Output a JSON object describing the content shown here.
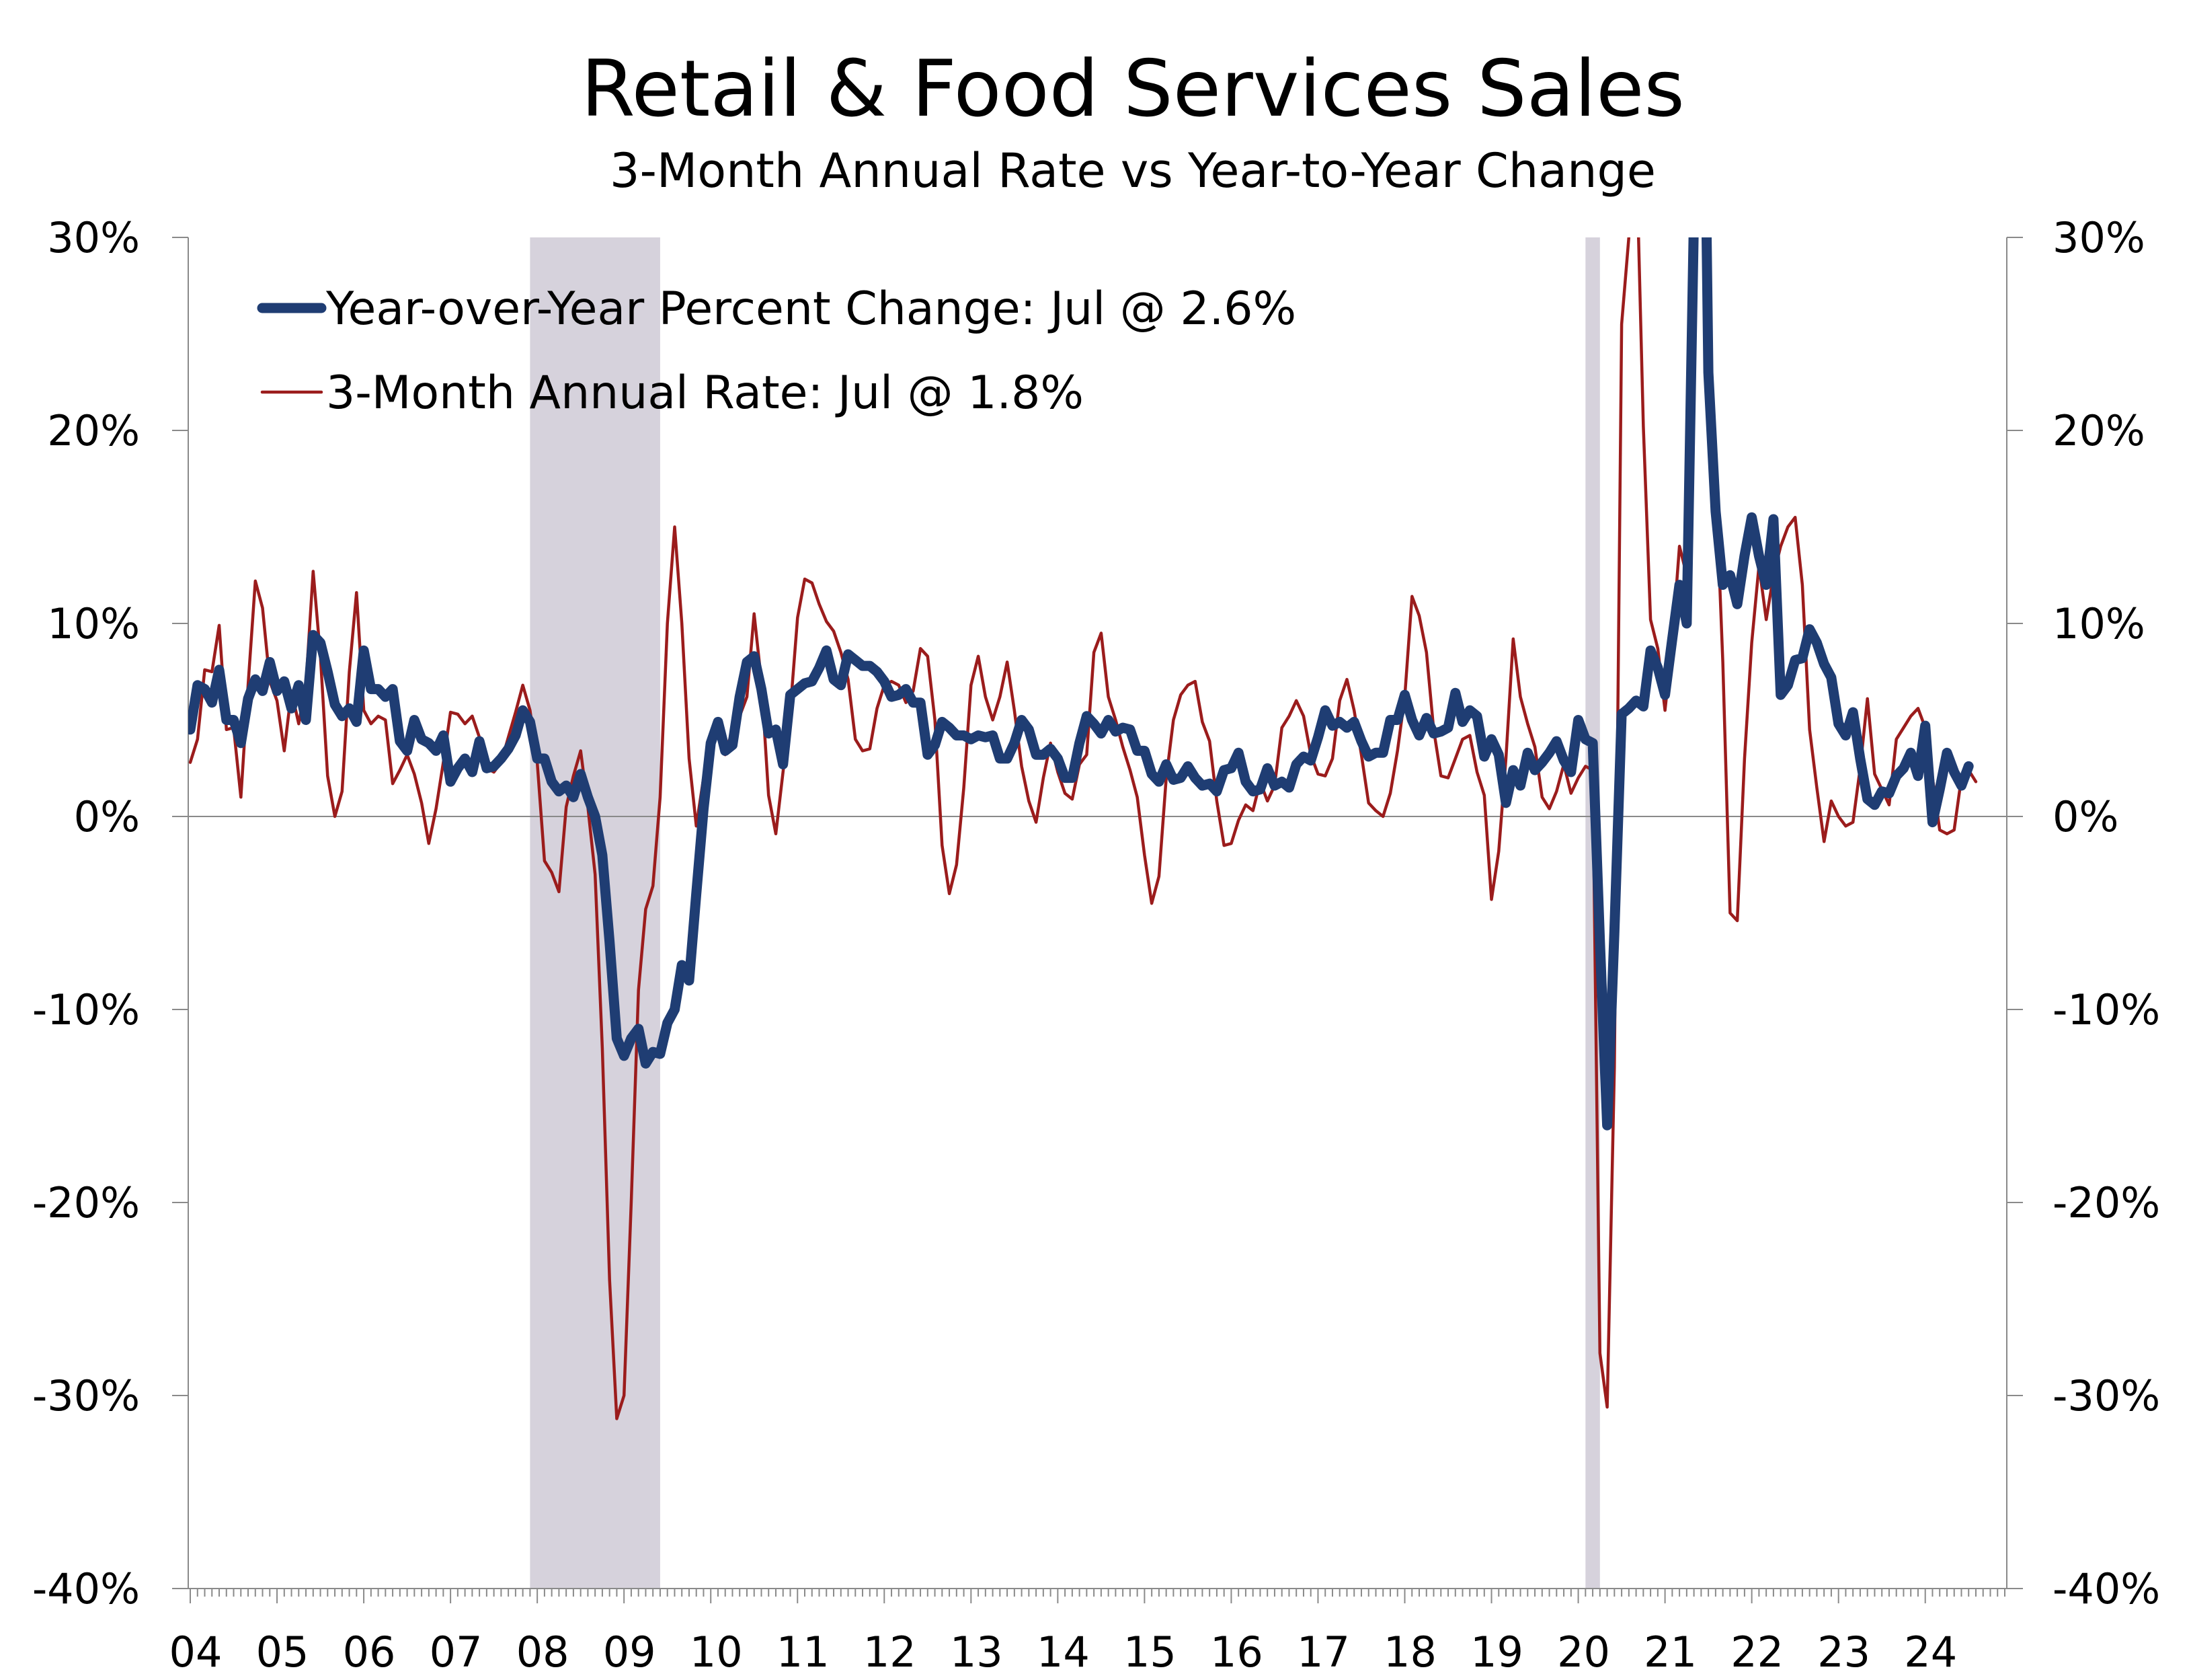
{
  "chart_data": {
    "type": "line",
    "title": "Retail & Food Services Sales",
    "subtitle": "3-Month Annual Rate vs Year-to-Year Change",
    "xlabel": "",
    "ylabel": "",
    "x_start": "2004-01",
    "x_end": "2024-07",
    "x_step": "month",
    "x_tick_labels": [
      "04",
      "05",
      "06",
      "07",
      "08",
      "09",
      "10",
      "11",
      "12",
      "13",
      "14",
      "15",
      "16",
      "17",
      "18",
      "19",
      "20",
      "21",
      "22",
      "23",
      "24"
    ],
    "y_tick_labels": [
      "30%",
      "20%",
      "10%",
      "0%",
      "-10%",
      "-20%",
      "-30%",
      "-40%"
    ],
    "ylim": [
      -40,
      30
    ],
    "grid": false,
    "legend_position": "top-left",
    "recessions": [
      {
        "start": "2007-12",
        "end": "2009-06"
      },
      {
        "start": "2020-02",
        "end": "2020-04"
      }
    ],
    "series": [
      {
        "name": "Year-over-Year Percent Change: Jul @ 2.6%",
        "color": "#1f3d73",
        "values": [
          4.5,
          6.8,
          6.6,
          5.9,
          7.6,
          5.0,
          5.0,
          3.8,
          6.1,
          7.1,
          6.5,
          8.0,
          6.5,
          7.0,
          5.6,
          6.8,
          5.0,
          9.4,
          9.0,
          7.5,
          5.8,
          5.2,
          5.6,
          4.9,
          8.6,
          6.6,
          6.6,
          6.2,
          6.6,
          3.9,
          3.4,
          5.0,
          4.0,
          3.8,
          3.4,
          4.2,
          1.8,
          2.5,
          3.0,
          2.3,
          3.9,
          2.5,
          2.6,
          3.0,
          3.5,
          4.2,
          5.5,
          4.9,
          3.0,
          3.0,
          1.8,
          1.3,
          1.6,
          1.0,
          2.2,
          1.0,
          0.0,
          -2.0,
          -6.5,
          -11.5,
          -12.4,
          -11.5,
          -11.0,
          -12.8,
          -12.2,
          -12.3,
          -10.7,
          -10.0,
          -7.7,
          -8.5,
          -4.0,
          0.4,
          3.8,
          4.9,
          3.4,
          3.7,
          6.2,
          8.0,
          8.3,
          6.6,
          4.3,
          4.5,
          2.7,
          6.3,
          6.6,
          6.9,
          7.0,
          7.7,
          8.6,
          7.1,
          6.8,
          8.4,
          8.1,
          7.8,
          7.8,
          7.5,
          7.0,
          6.2,
          6.3,
          6.6,
          5.9,
          5.9,
          3.2,
          3.7,
          4.9,
          4.6,
          4.2,
          4.2,
          4.0,
          4.2,
          4.1,
          4.2,
          3.0,
          3.0,
          3.8,
          5.0,
          4.5,
          3.2,
          3.2,
          3.5,
          3.0,
          2.0,
          2.0,
          3.8,
          5.2,
          4.8,
          4.3,
          5.0,
          4.4,
          4.6,
          4.5,
          3.4,
          3.4,
          2.2,
          1.8,
          2.7,
          1.9,
          2.0,
          2.6,
          2.0,
          1.6,
          1.7,
          1.3,
          2.4,
          2.5,
          3.3,
          1.8,
          1.3,
          1.4,
          2.5,
          1.6,
          1.8,
          1.5,
          2.7,
          3.1,
          2.9,
          4.1,
          5.5,
          4.7,
          4.9,
          4.6,
          4.9,
          3.9,
          3.1,
          3.3,
          3.3,
          5.0,
          5.0,
          6.3,
          5.0,
          4.2,
          5.1,
          4.3,
          4.4,
          4.6,
          6.4,
          4.9,
          5.5,
          5.2,
          3.1,
          4.0,
          3.2,
          0.7,
          2.4,
          1.6,
          3.3,
          2.4,
          2.8,
          3.3,
          3.9,
          2.9,
          2.3,
          5.0,
          4.0,
          3.8,
          -6.5,
          -16.0,
          -6.0,
          5.3,
          5.6,
          6.0,
          5.7,
          8.6,
          7.7,
          6.3,
          9.2,
          12.0,
          10.0,
          31.0,
          52.0,
          23.0,
          15.8,
          12.0,
          12.5,
          11.0,
          13.5,
          15.5,
          13.5,
          12.0,
          15.4,
          6.3,
          6.8,
          8.1,
          8.2,
          9.7,
          9.0,
          7.9,
          7.2,
          4.8,
          4.2,
          5.4,
          3.0,
          0.9,
          0.6,
          1.3,
          1.2,
          2.1,
          2.5,
          3.3,
          2.1,
          4.7,
          -0.3,
          1.4,
          3.3,
          2.3,
          1.6,
          2.6
        ]
      },
      {
        "name": "3-Month Annual Rate: Jul @ 1.8%",
        "color": "#9b1c1c",
        "values": [
          2.8,
          4.0,
          7.6,
          7.5,
          9.9,
          4.5,
          4.6,
          1.0,
          6.8,
          12.2,
          10.8,
          7.0,
          6.0,
          3.4,
          6.5,
          4.8,
          6.8,
          12.7,
          8.3,
          2.1,
          0.0,
          1.3,
          7.5,
          11.6,
          5.5,
          4.8,
          5.2,
          5.0,
          1.7,
          2.4,
          3.2,
          2.2,
          0.7,
          -1.4,
          0.4,
          2.8,
          5.4,
          5.3,
          4.8,
          5.2,
          4.1,
          2.5,
          2.3,
          2.8,
          4.1,
          5.4,
          6.8,
          5.5,
          2.8,
          -2.3,
          -2.9,
          -3.9,
          0.5,
          2.1,
          3.4,
          0.5,
          -3.0,
          -12.0,
          -24.0,
          -31.2,
          -30.0,
          -20.0,
          -9.0,
          -4.8,
          -3.6,
          1.0,
          10.0,
          15.0,
          10.0,
          3.0,
          -0.5,
          2.0,
          4.3,
          4.8,
          3.2,
          4.5,
          5.2,
          6.2,
          10.5,
          7.0,
          1.1,
          -0.9,
          2.3,
          5.5,
          10.3,
          12.3,
          12.1,
          11.0,
          10.1,
          9.6,
          8.5,
          7.1,
          4.0,
          3.4,
          3.5,
          5.6,
          6.8,
          7.0,
          6.8,
          5.9,
          6.5,
          8.7,
          8.3,
          5.0,
          -1.5,
          -4.0,
          -2.5,
          1.5,
          6.8,
          8.3,
          6.2,
          5.0,
          6.2,
          8.0,
          5.5,
          2.6,
          0.8,
          -0.3,
          2.0,
          3.8,
          2.3,
          1.2,
          0.9,
          2.7,
          3.2,
          8.5,
          9.5,
          6.2,
          5.0,
          3.6,
          2.4,
          1.0,
          -2.0,
          -4.5,
          -3.1,
          2.0,
          5.0,
          6.3,
          6.8,
          7.0,
          4.9,
          3.9,
          0.8,
          -1.5,
          -1.4,
          -0.2,
          0.6,
          0.3,
          1.8,
          0.8,
          1.6,
          4.6,
          5.2,
          6.0,
          5.2,
          3.2,
          2.2,
          2.1,
          3.0,
          6.0,
          7.1,
          5.5,
          3.2,
          0.7,
          0.3,
          0.0,
          1.2,
          3.4,
          6.2,
          11.4,
          10.4,
          8.5,
          4.5,
          2.1,
          2.0,
          3.0,
          4.0,
          4.2,
          2.3,
          1.1,
          -4.3,
          -1.8,
          3.0,
          9.2,
          6.2,
          4.8,
          3.6,
          1.0,
          0.4,
          1.3,
          2.7,
          1.2,
          2.0,
          2.6,
          2.4,
          -27.8,
          -30.6,
          -13.0,
          25.5,
          30.0,
          35.0,
          20.2,
          10.2,
          8.7,
          5.5,
          9.0,
          14.0,
          12.5,
          38.0,
          45.0,
          25.0,
          17.5,
          8.0,
          -5.0,
          -5.4,
          3.0,
          9.0,
          13.0,
          10.2,
          12.5,
          14.0,
          15.0,
          15.5,
          12.0,
          4.5,
          1.5,
          -1.3,
          0.8,
          0.0,
          -0.5,
          -0.3,
          2.5,
          6.1,
          2.2,
          1.4,
          0.6,
          4.0,
          4.6,
          5.2,
          5.6,
          4.6,
          2.0,
          -0.7,
          -0.9,
          -0.7,
          2.0,
          2.4,
          1.8
        ]
      }
    ]
  }
}
